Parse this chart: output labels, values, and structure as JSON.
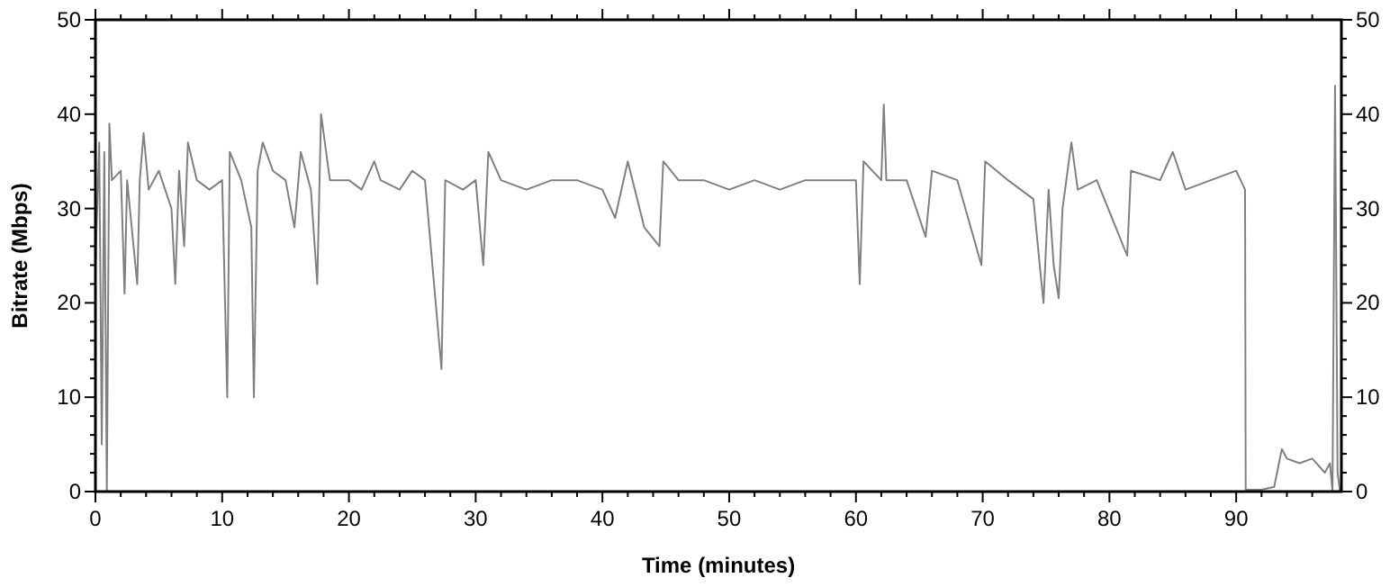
{
  "chart_data": {
    "type": "line",
    "xlabel": "Time (minutes)",
    "ylabel": "Bitrate (Mbps)",
    "xlim": [
      0,
      98.3
    ],
    "ylim": [
      0,
      50
    ],
    "y2lim": [
      0,
      50
    ],
    "xticks": [
      0,
      {
        "value": 2,
        "label": null
      },
      {
        "value": 4,
        "label": null
      },
      {
        "value": 6,
        "label": null
      },
      {
        "value": 8,
        "label": null
      },
      10,
      {
        "value": 12,
        "label": null
      },
      {
        "value": 14,
        "label": null
      },
      {
        "value": 16,
        "label": null
      },
      {
        "value": 18,
        "label": null
      },
      20,
      {
        "value": 22,
        "label": null
      },
      {
        "value": 24,
        "label": null
      },
      {
        "value": 26,
        "label": null
      },
      {
        "value": 28,
        "label": null
      },
      30,
      {
        "value": 32,
        "label": null
      },
      {
        "value": 34,
        "label": null
      },
      {
        "value": 36,
        "label": null
      },
      {
        "value": 38,
        "label": null
      },
      40,
      {
        "value": 42,
        "label": null
      },
      {
        "value": 44,
        "label": null
      },
      {
        "value": 46,
        "label": null
      },
      {
        "value": 48,
        "label": null
      },
      50,
      {
        "value": 52,
        "label": null
      },
      {
        "value": 54,
        "label": null
      },
      {
        "value": 56,
        "label": null
      },
      {
        "value": 58,
        "label": null
      },
      60,
      {
        "value": 62,
        "label": null
      },
      {
        "value": 64,
        "label": null
      },
      {
        "value": 66,
        "label": null
      },
      {
        "value": 68,
        "label": null
      },
      70,
      {
        "value": 72,
        "label": null
      },
      {
        "value": 74,
        "label": null
      },
      {
        "value": 76,
        "label": null
      },
      {
        "value": 78,
        "label": null
      },
      80,
      {
        "value": 82,
        "label": null
      },
      {
        "value": 84,
        "label": null
      },
      {
        "value": 86,
        "label": null
      },
      {
        "value": 88,
        "label": null
      },
      90,
      {
        "value": 92,
        "label": null
      },
      {
        "value": 94,
        "label": null
      },
      {
        "value": 96,
        "label": null
      }
    ],
    "yticks": [
      0,
      {
        "value": 2,
        "label": null
      },
      {
        "value": 4,
        "label": null
      },
      {
        "value": 6,
        "label": null
      },
      {
        "value": 8,
        "label": null
      },
      10,
      {
        "value": 12,
        "label": null
      },
      {
        "value": 14,
        "label": null
      },
      {
        "value": 16,
        "label": null
      },
      {
        "value": 18,
        "label": null
      },
      20,
      {
        "value": 22,
        "label": null
      },
      {
        "value": 24,
        "label": null
      },
      {
        "value": 26,
        "label": null
      },
      {
        "value": 28,
        "label": null
      },
      30,
      {
        "value": 32,
        "label": null
      },
      {
        "value": 34,
        "label": null
      },
      {
        "value": 36,
        "label": null
      },
      {
        "value": 38,
        "label": null
      },
      40,
      {
        "value": 42,
        "label": null
      },
      {
        "value": 44,
        "label": null
      },
      {
        "value": 46,
        "label": null
      },
      {
        "value": 48,
        "label": null
      },
      50
    ],
    "y2ticks": [
      0,
      {
        "value": 2,
        "label": null
      },
      {
        "value": 4,
        "label": null
      },
      {
        "value": 6,
        "label": null
      },
      {
        "value": 8,
        "label": null
      },
      10,
      {
        "value": 12,
        "label": null
      },
      {
        "value": 14,
        "label": null
      },
      {
        "value": 16,
        "label": null
      },
      {
        "value": 18,
        "label": null
      },
      20,
      {
        "value": 22,
        "label": null
      },
      {
        "value": 24,
        "label": null
      },
      {
        "value": 26,
        "label": null
      },
      {
        "value": 28,
        "label": null
      },
      30,
      {
        "value": 32,
        "label": null
      },
      {
        "value": 34,
        "label": null
      },
      {
        "value": 36,
        "label": null
      },
      {
        "value": 38,
        "label": null
      },
      40,
      {
        "value": 42,
        "label": null
      },
      {
        "value": 44,
        "label": null
      },
      {
        "value": 46,
        "label": null
      },
      {
        "value": 48,
        "label": null
      },
      50
    ],
    "grid": false,
    "marker": "none",
    "line_style": "solid",
    "series": [
      {
        "color": "#808080",
        "x": [
          0,
          0.3,
          0.5,
          0.7,
          0.9,
          1.1,
          1.3,
          2,
          2.3,
          2.5,
          3.3,
          3.5,
          3.8,
          4.2,
          5,
          6,
          6.3,
          6.6,
          7,
          7.3,
          8,
          9,
          10,
          10.4,
          10.6,
          11.5,
          12.3,
          12.5,
          12.8,
          13.2,
          14,
          15,
          15.7,
          16.2,
          17,
          17.5,
          17.8,
          18.5,
          20,
          21,
          22,
          22.5,
          24,
          25,
          26,
          27.3,
          27.6,
          29,
          30,
          30.6,
          31,
          32,
          34,
          36,
          38,
          40,
          41,
          42,
          43.3,
          44.5,
          44.8,
          46,
          48,
          50,
          52,
          54,
          56,
          58,
          60,
          60.3,
          60.6,
          62,
          62.2,
          62.4,
          64,
          65.5,
          66,
          68,
          69.9,
          70.2,
          72,
          74,
          74.5,
          74.8,
          75.2,
          75.6,
          76,
          76.3,
          77,
          77.5,
          79,
          81.4,
          81.7,
          84,
          85,
          86,
          88,
          90,
          90.7,
          90.75,
          92,
          93,
          93.6,
          94,
          95,
          96,
          97,
          97.4,
          97.6,
          97.8,
          98,
          98.2
        ],
        "values": [
          24,
          37,
          5,
          36,
          0,
          39,
          33,
          34,
          21,
          33,
          22,
          33,
          38,
          32,
          34,
          30,
          22,
          34,
          26,
          37,
          33,
          32,
          33,
          10,
          36,
          33,
          28,
          10,
          34,
          37,
          34,
          33,
          28,
          36,
          32,
          22,
          40,
          33,
          33,
          32,
          35,
          33,
          32,
          34,
          33,
          13,
          33,
          32,
          33,
          24,
          36,
          33,
          32,
          33,
          33,
          32,
          29,
          35,
          28,
          26,
          35,
          33,
          33,
          32,
          33,
          32,
          33,
          33,
          33,
          22,
          35,
          33,
          41,
          33,
          33,
          27,
          34,
          33,
          24,
          35,
          33,
          31,
          24,
          20,
          32,
          24,
          20.5,
          30,
          37,
          32,
          33,
          25,
          34,
          33,
          36,
          32,
          33,
          34,
          32,
          0.2,
          0.2,
          0.5,
          4.5,
          3.5,
          3,
          3.5,
          2,
          3,
          0,
          43,
          2,
          0
        ]
      }
    ]
  }
}
